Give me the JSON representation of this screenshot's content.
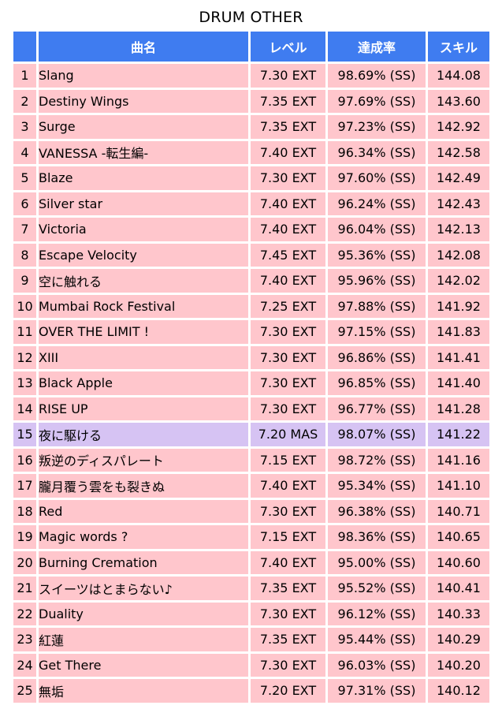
{
  "title": "DRUM OTHER",
  "headers": {
    "rank": "",
    "song": "曲名",
    "level": "レベル",
    "rate": "達成率",
    "skill": "スキル"
  },
  "colors": {
    "header_bg": "#3f7cf0",
    "ext_row_bg": "#ffc6cc",
    "mas_row_bg": "#d6c3f3"
  },
  "rows": [
    {
      "rank": "1",
      "song": "Slang",
      "level": "7.30 EXT",
      "rate": "98.69% (SS)",
      "skill": "144.08",
      "difficulty": "EXT"
    },
    {
      "rank": "2",
      "song": "Destiny Wings",
      "level": "7.35 EXT",
      "rate": "97.69% (SS)",
      "skill": "143.60",
      "difficulty": "EXT"
    },
    {
      "rank": "3",
      "song": "Surge",
      "level": "7.35 EXT",
      "rate": "97.23% (SS)",
      "skill": "142.92",
      "difficulty": "EXT"
    },
    {
      "rank": "4",
      "song": "VANESSA -転生編-",
      "level": "7.40 EXT",
      "rate": "96.34% (SS)",
      "skill": "142.58",
      "difficulty": "EXT"
    },
    {
      "rank": "5",
      "song": "Blaze",
      "level": "7.30 EXT",
      "rate": "97.60% (SS)",
      "skill": "142.49",
      "difficulty": "EXT"
    },
    {
      "rank": "6",
      "song": "Silver star",
      "level": "7.40 EXT",
      "rate": "96.24% (SS)",
      "skill": "142.43",
      "difficulty": "EXT"
    },
    {
      "rank": "7",
      "song": "Victoria",
      "level": "7.40 EXT",
      "rate": "96.04% (SS)",
      "skill": "142.13",
      "difficulty": "EXT"
    },
    {
      "rank": "8",
      "song": "Escape Velocity",
      "level": "7.45 EXT",
      "rate": "95.36% (SS)",
      "skill": "142.08",
      "difficulty": "EXT"
    },
    {
      "rank": "9",
      "song": "空に触れる",
      "level": "7.40 EXT",
      "rate": "95.96% (SS)",
      "skill": "142.02",
      "difficulty": "EXT"
    },
    {
      "rank": "10",
      "song": "Mumbai Rock Festival",
      "level": "7.25 EXT",
      "rate": "97.88% (SS)",
      "skill": "141.92",
      "difficulty": "EXT"
    },
    {
      "rank": "11",
      "song": "OVER THE LIMIT !",
      "level": "7.30 EXT",
      "rate": "97.15% (SS)",
      "skill": "141.83",
      "difficulty": "EXT"
    },
    {
      "rank": "12",
      "song": "XIII",
      "level": "7.30 EXT",
      "rate": "96.86% (SS)",
      "skill": "141.41",
      "difficulty": "EXT"
    },
    {
      "rank": "13",
      "song": "Black Apple",
      "level": "7.30 EXT",
      "rate": "96.85% (SS)",
      "skill": "141.40",
      "difficulty": "EXT"
    },
    {
      "rank": "14",
      "song": "RISE UP",
      "level": "7.30 EXT",
      "rate": "96.77% (SS)",
      "skill": "141.28",
      "difficulty": "EXT"
    },
    {
      "rank": "15",
      "song": "夜に駆ける",
      "level": "7.20 MAS",
      "rate": "98.07% (SS)",
      "skill": "141.22",
      "difficulty": "MAS"
    },
    {
      "rank": "16",
      "song": "叛逆のディスパレート",
      "level": "7.15 EXT",
      "rate": "98.72% (SS)",
      "skill": "141.16",
      "difficulty": "EXT"
    },
    {
      "rank": "17",
      "song": "朧月覆う雲をも裂きぬ",
      "level": "7.40 EXT",
      "rate": "95.34% (SS)",
      "skill": "141.10",
      "difficulty": "EXT"
    },
    {
      "rank": "18",
      "song": "Red",
      "level": "7.30 EXT",
      "rate": "96.38% (SS)",
      "skill": "140.71",
      "difficulty": "EXT"
    },
    {
      "rank": "19",
      "song": "Magic words ?",
      "level": "7.15 EXT",
      "rate": "98.36% (SS)",
      "skill": "140.65",
      "difficulty": "EXT"
    },
    {
      "rank": "20",
      "song": "Burning Cremation",
      "level": "7.40 EXT",
      "rate": "95.00% (SS)",
      "skill": "140.60",
      "difficulty": "EXT"
    },
    {
      "rank": "21",
      "song": "スイーツはとまらない♪",
      "level": "7.35 EXT",
      "rate": "95.52% (SS)",
      "skill": "140.41",
      "difficulty": "EXT"
    },
    {
      "rank": "22",
      "song": "Duality",
      "level": "7.30 EXT",
      "rate": "96.12% (SS)",
      "skill": "140.33",
      "difficulty": "EXT"
    },
    {
      "rank": "23",
      "song": "紅蓮",
      "level": "7.35 EXT",
      "rate": "95.44% (SS)",
      "skill": "140.29",
      "difficulty": "EXT"
    },
    {
      "rank": "24",
      "song": "Get There",
      "level": "7.30 EXT",
      "rate": "96.03% (SS)",
      "skill": "140.20",
      "difficulty": "EXT"
    },
    {
      "rank": "25",
      "song": "無垢",
      "level": "7.20 EXT",
      "rate": "97.31% (SS)",
      "skill": "140.12",
      "difficulty": "EXT"
    }
  ]
}
